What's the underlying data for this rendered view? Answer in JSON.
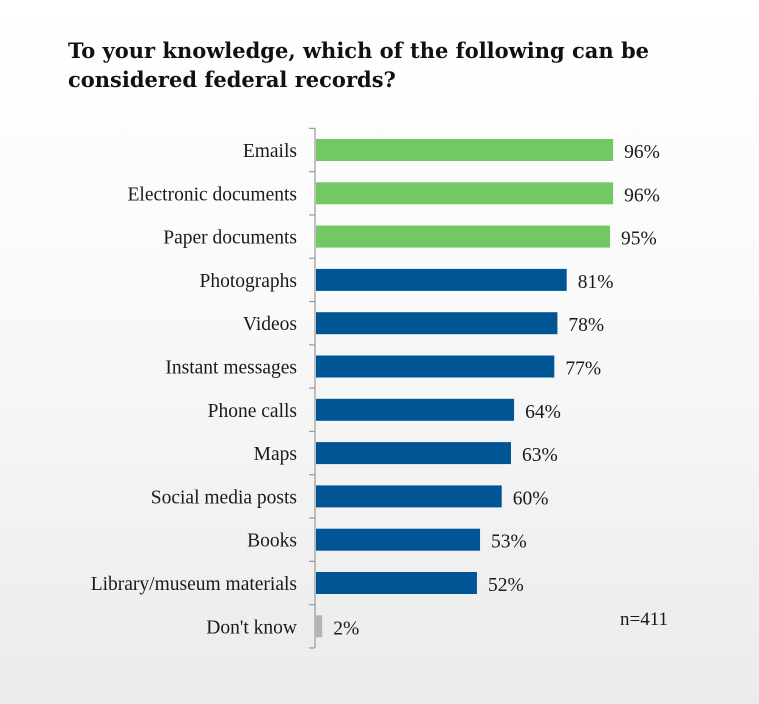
{
  "chart_data": {
    "type": "bar",
    "orientation": "horizontal",
    "title": "To your knowledge, which of the following can be considered federal records?",
    "categories": [
      "Emails",
      "Electronic documents",
      "Paper documents",
      "Photographs",
      "Videos",
      "Instant messages",
      "Phone calls",
      "Maps",
      "Social media posts",
      "Books",
      "Library/museum materials",
      "Don't know"
    ],
    "values": [
      96,
      96,
      95,
      81,
      78,
      77,
      64,
      63,
      60,
      53,
      52,
      2
    ],
    "data_labels": [
      "96%",
      "96%",
      "95%",
      "81%",
      "78%",
      "77%",
      "64%",
      "63%",
      "60%",
      "53%",
      "52%",
      "2%"
    ],
    "colors": [
      "#72c862",
      "#72c862",
      "#72c862",
      "#005595",
      "#005595",
      "#005595",
      "#005595",
      "#005595",
      "#005595",
      "#005595",
      "#005595",
      "#b4b4b4"
    ],
    "xlim": [
      0,
      100
    ],
    "grid": false,
    "legend": "none",
    "note": "n=411"
  }
}
